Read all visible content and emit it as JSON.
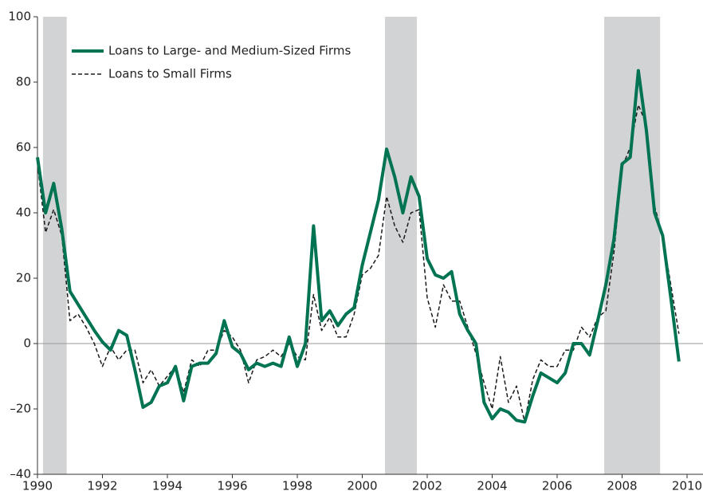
{
  "chart_data": {
    "type": "line",
    "x": [
      1990,
      1990.25,
      1990.5,
      1990.75,
      1991,
      1991.25,
      1991.5,
      1991.75,
      1992,
      1992.25,
      1992.5,
      1992.75,
      1993,
      1993.25,
      1993.5,
      1993.75,
      1994,
      1994.25,
      1994.5,
      1994.75,
      1995,
      1995.25,
      1995.5,
      1995.75,
      1996,
      1996.25,
      1996.5,
      1996.75,
      1997,
      1997.25,
      1997.5,
      1997.75,
      1998,
      1998.25,
      1998.5,
      1998.75,
      1999,
      1999.25,
      1999.5,
      1999.75,
      2000,
      2000.25,
      2000.5,
      2000.75,
      2001,
      2001.25,
      2001.5,
      2001.75,
      2002,
      2002.25,
      2002.5,
      2002.75,
      2003,
      2003.25,
      2003.5,
      2003.75,
      2004,
      2004.25,
      2004.5,
      2004.75,
      2005,
      2005.25,
      2005.5,
      2005.75,
      2006,
      2006.25,
      2006.5,
      2006.75,
      2007,
      2007.25,
      2007.5,
      2007.75,
      2008,
      2008.25,
      2008.5,
      2008.75,
      2009,
      2009.25,
      2009.5,
      2009.75
    ],
    "series": [
      {
        "name": "Loans to Large- and Medium-Sized Firms",
        "color": "#007352",
        "style": "solid",
        "values": [
          57,
          40,
          49,
          35,
          16,
          12,
          8,
          4,
          0.5,
          -2,
          4,
          2.5,
          -8,
          -19.5,
          -18,
          -13,
          -12,
          -7,
          -17.5,
          -7,
          -6,
          -6,
          -3,
          7,
          -1,
          -3,
          -8,
          -6,
          -7,
          -6,
          -7,
          2,
          -7,
          0,
          36,
          7,
          10,
          5.5,
          9,
          11,
          24,
          34,
          44,
          59.5,
          51,
          40,
          51,
          45,
          26,
          21,
          20,
          22,
          9,
          4,
          0,
          -18,
          -23,
          -20,
          -21,
          -23.5,
          -24,
          -16,
          -9,
          -10.5,
          -12,
          -9,
          0,
          0,
          -3.5,
          7,
          18,
          32,
          55,
          57,
          83.5,
          65,
          40,
          33,
          14,
          -5.5
        ]
      },
      {
        "name": "Loans to Small Firms",
        "color": "#1a1a1a",
        "style": "dashed",
        "values": [
          55,
          34,
          41,
          33,
          7,
          9,
          5,
          0,
          -7,
          -1,
          -5,
          -2,
          -2,
          -12,
          -8,
          -13,
          -10,
          -7,
          -15,
          -5,
          -7,
          -2,
          -2,
          4,
          2,
          -2,
          -12,
          -5,
          -4,
          -2,
          -4,
          0,
          -4,
          -5,
          15,
          4,
          8,
          2,
          2,
          9,
          21,
          23,
          27,
          45,
          36,
          31,
          40,
          41,
          14,
          5,
          18,
          13,
          13,
          5,
          -3,
          -12,
          -20,
          -4,
          -18,
          -13,
          -24,
          -11,
          -5,
          -7,
          -7,
          -2,
          -2,
          5,
          2,
          8,
          10,
          28,
          54,
          60,
          73,
          67,
          42,
          33,
          18,
          3
        ]
      }
    ],
    "recession_periods": [
      [
        1990.17,
        1990.9
      ],
      [
        2000.7,
        2001.68
      ],
      [
        2007.45,
        2009.17
      ]
    ],
    "recession_color": "#d1d3d4",
    "xlim": [
      1990,
      2010
    ],
    "xticks": [
      1990,
      1992,
      1994,
      1996,
      1998,
      2000,
      2002,
      2004,
      2006,
      2008,
      2010
    ],
    "ylim": [
      -40,
      100
    ],
    "yticks": [
      {
        "value": -40,
        "label": "–40"
      },
      {
        "value": -20,
        "label": "–20"
      },
      0,
      20,
      40,
      60,
      80,
      100
    ],
    "zero_line": true,
    "legend": "upper left"
  }
}
